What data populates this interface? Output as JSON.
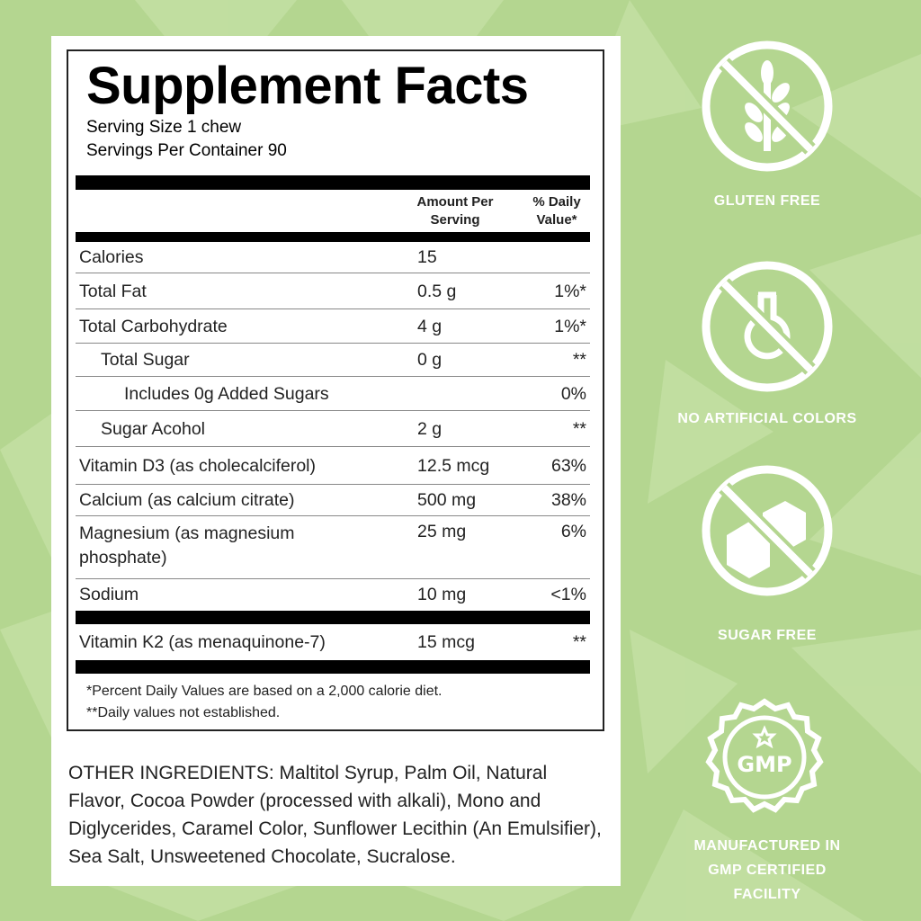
{
  "label": {
    "title": "Supplement Facts",
    "serving_size": "Serving Size 1 chew",
    "servings_per_container": "Servings Per Container 90",
    "col_amount": "Amount Per Serving",
    "col_dv": "% Daily Value*",
    "rows": [
      {
        "name": "Calories",
        "amount": "15",
        "dv": ""
      },
      {
        "name": "Total Fat",
        "amount": "0.5 g",
        "dv": "1%*"
      },
      {
        "name": "Total Carbohydrate",
        "amount": "4 g",
        "dv": "1%*"
      },
      {
        "name": "Total Sugar",
        "amount": "0 g",
        "dv": "**"
      },
      {
        "name": "Includes 0g Added Sugars",
        "amount": "",
        "dv": "0%"
      },
      {
        "name": "Sugar Acohol",
        "amount": "2 g",
        "dv": "**"
      },
      {
        "name": "Vitamin D3 (as cholecalciferol)",
        "amount": "12.5 mcg",
        "dv": "63%"
      },
      {
        "name": "Calcium (as calcium citrate)",
        "amount": "500 mg",
        "dv": "38%"
      },
      {
        "name": "Magnesium (as magnesium phosphate)",
        "amount": "25 mg",
        "dv": "6%"
      },
      {
        "name": "Sodium",
        "amount": "10 mg",
        "dv": "<1%"
      },
      {
        "name": "Vitamin K2 (as menaquinone-7)",
        "amount": "15 mcg",
        "dv": "**"
      }
    ],
    "footnote1": "*Percent Daily Values are based on a 2,000 calorie diet.",
    "footnote2": "**Daily values not established."
  },
  "ingredients": "OTHER INGREDIENTS: Maltitol Syrup, Palm Oil, Natural Flavor, Cocoa Powder (processed with alkali), Mono and Diglycerides, Caramel Color, Sunflower Lecithin (An Emulsifier), Sea Salt, Unsweetened Chocolate, Sucralose.",
  "badges": [
    {
      "icon": "wheat-crossed-icon",
      "label": "GLUTEN FREE"
    },
    {
      "icon": "flask-crossed-icon",
      "label": "NO ARTIFICIAL COLORS"
    },
    {
      "icon": "sugar-cubes-crossed-icon",
      "label": "SUGAR FREE"
    },
    {
      "icon": "gmp-seal-icon",
      "label": "MANUFACTURED IN GMP CERTIFIED FACILITY",
      "seal_text": "GMP"
    }
  ],
  "colors": {
    "background": "#b4d690",
    "wedge": "#c6e2a6"
  }
}
